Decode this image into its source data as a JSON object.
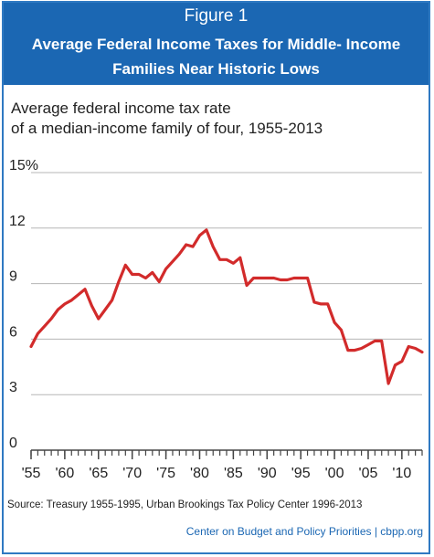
{
  "header": {
    "label": "Figure 1",
    "title_line1": "Average Federal Income Taxes for Middle- Income",
    "title_line2": "Families Near Historic Lows"
  },
  "subtitle_line1": "Average federal income tax rate",
  "subtitle_line2": "of a median-income family of four, 1955-2013",
  "source": "Source: Treasury 1955-1995, Urban Brookings Tax Policy Center 1996-2013",
  "credit": "Center on Budget and Policy Priorities | cbpp.org",
  "colors": {
    "header_bg": "#1b67b3",
    "line": "#d22b2b",
    "grid": "#b5b5b5",
    "border": "#2f79c2"
  },
  "chart_data": {
    "type": "line",
    "title": "Average federal income tax rate of a median-income family of four, 1955-2013",
    "xlabel": "",
    "ylabel": "",
    "xlim": [
      1955,
      2013
    ],
    "ylim": [
      0,
      15
    ],
    "y_ticks": [
      0,
      3,
      6,
      9,
      12,
      15
    ],
    "y_tick_labels": [
      "0",
      "3",
      "6",
      "9",
      "12",
      "15%"
    ],
    "x_ticks": [
      1955,
      1960,
      1965,
      1970,
      1975,
      1980,
      1985,
      1990,
      1995,
      2000,
      2005,
      2010
    ],
    "x_tick_labels": [
      "'55",
      "'60",
      "'65",
      "'70",
      "'75",
      "'80",
      "'85",
      "'90",
      "'95",
      "'00",
      "'05",
      "'10"
    ],
    "grid": true,
    "series": [
      {
        "x": [
          1955,
          1956,
          1957,
          1958,
          1959,
          1960,
          1961,
          1962,
          1963,
          1964,
          1965,
          1966,
          1967,
          1968,
          1969,
          1970,
          1971,
          1972,
          1973,
          1974,
          1975,
          1976,
          1977,
          1978,
          1979,
          1980,
          1981,
          1982,
          1983,
          1984,
          1985,
          1986,
          1987,
          1988,
          1989,
          1990,
          1991,
          1992,
          1993,
          1994,
          1995,
          1996,
          1997,
          1998,
          1999,
          2000,
          2001,
          2002,
          2003,
          2004,
          2005,
          2006,
          2007,
          2008,
          2009,
          2010,
          2011,
          2012,
          2013
        ],
        "values": [
          5.6,
          6.3,
          6.7,
          7.1,
          7.6,
          7.9,
          8.1,
          8.4,
          8.7,
          7.8,
          7.1,
          7.6,
          8.1,
          9.1,
          10.0,
          9.5,
          9.5,
          9.3,
          9.6,
          9.1,
          9.8,
          10.2,
          10.6,
          11.1,
          11.0,
          11.6,
          11.9,
          11.0,
          10.3,
          10.3,
          10.1,
          10.4,
          8.9,
          9.3,
          9.3,
          9.3,
          9.3,
          9.2,
          9.2,
          9.3,
          9.3,
          9.3,
          8.0,
          7.9,
          7.9,
          6.9,
          6.5,
          5.4,
          5.4,
          5.5,
          5.7,
          5.9,
          5.9,
          3.6,
          4.6,
          4.8,
          5.6,
          5.5,
          5.3
        ]
      }
    ]
  }
}
